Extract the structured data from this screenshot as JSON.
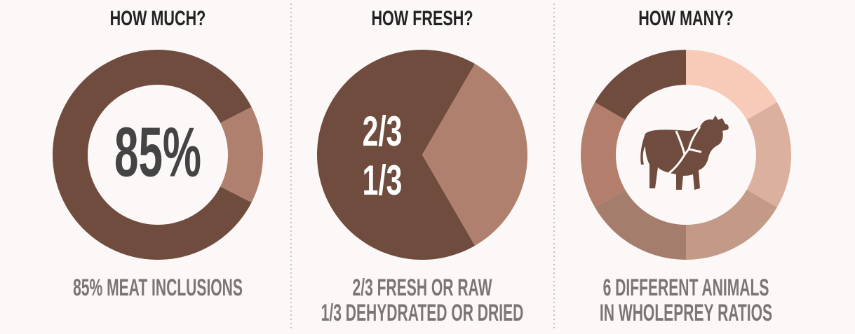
{
  "chart_data": [
    {
      "type": "donut",
      "title": "HOW MUCH?",
      "values": [
        85,
        15
      ],
      "colors": [
        "#6f4c3e",
        "#b0806e"
      ],
      "center_label": "85%",
      "caption": [
        "85% MEAT INCLUSIONS"
      ]
    },
    {
      "type": "pie",
      "title": "HOW FRESH?",
      "values": [
        0.667,
        0.333
      ],
      "colors": [
        "#6f4c3e",
        "#b0806e"
      ],
      "value_labels": [
        "2/3",
        "1/3"
      ],
      "caption": [
        "2/3 FRESH OR RAW",
        "1/3 DEHYDRATED OR DRIED"
      ]
    },
    {
      "type": "donut",
      "title": "HOW MANY?",
      "values": [
        1,
        1,
        1,
        1,
        1,
        1
      ],
      "colors": [
        "#f7cbb8",
        "#dcb09e",
        "#c39a87",
        "#a57d6c",
        "#b37e6b",
        "#6f4c3e"
      ],
      "caption": [
        "6 DIFFERENT ANIMALS",
        "IN WHOLEPREY RATIOS"
      ]
    }
  ]
}
